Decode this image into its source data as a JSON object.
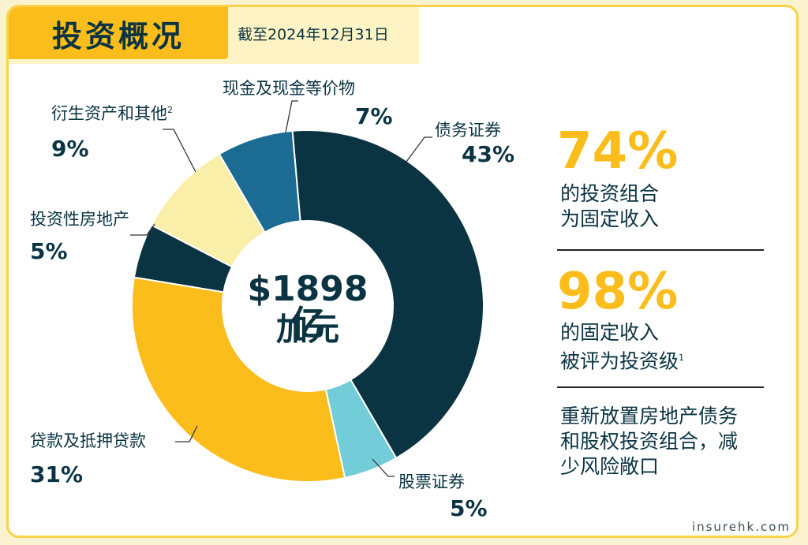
{
  "header": {
    "title": "投资概况",
    "date": "截至2024年12月31日"
  },
  "chart_data": {
    "type": "pie",
    "center_amount": "$1898亿",
    "center_unit": "加元",
    "slices": [
      {
        "label": "债务证券",
        "value": 43,
        "value_label": "43%",
        "color": "#0a3442"
      },
      {
        "label": "股票证券",
        "value": 5,
        "value_label": "5%",
        "color": "#72cdd8"
      },
      {
        "label": "贷款及抵押贷款",
        "value": 31,
        "value_label": "31%",
        "color": "#fbbd1c"
      },
      {
        "label": "投资性房地产",
        "value": 5,
        "value_label": "5%",
        "color": "#0a3442"
      },
      {
        "label": "衍生资产和其他",
        "label_sup": "2",
        "value": 9,
        "value_label": "9%",
        "color": "#f9efa8"
      },
      {
        "label": "现金及现金等价物",
        "value": 7,
        "value_label": "7%",
        "color": "#1b6b93"
      }
    ]
  },
  "stats": [
    {
      "value": "74%",
      "line1": "的投资组合",
      "line2": "为固定收入",
      "sup": ""
    },
    {
      "value": "98%",
      "line1": "的固定收入",
      "line2": "被评为投资级",
      "sup": "1"
    }
  ],
  "note": {
    "line1": "重新放置房地产债务",
    "line2": "和股权投资组合，减",
    "line3": "少风险敞口"
  },
  "watermark": "insurehk.com"
}
